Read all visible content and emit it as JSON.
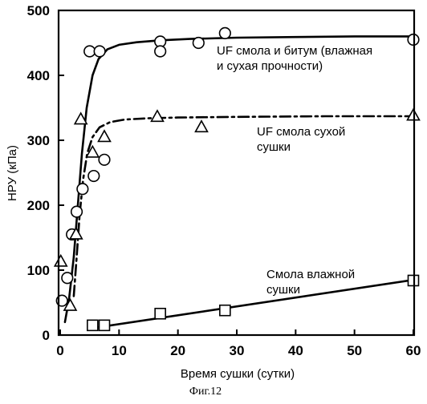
{
  "chart_data": {
    "type": "scatter",
    "title": "",
    "xlabel": "Время сушки (сутки)",
    "ylabel": "НРУ (кПа)",
    "xlim": [
      0,
      60
    ],
    "ylim": [
      0,
      500
    ],
    "xticks": [
      0,
      10,
      20,
      30,
      40,
      50,
      60
    ],
    "yticks": [
      0,
      100,
      200,
      300,
      400,
      500
    ],
    "grid": false,
    "legend": "none",
    "series": [
      {
        "marker": "circle",
        "points": [
          [
            0.3,
            53
          ],
          [
            1.2,
            88
          ],
          [
            2.0,
            155
          ],
          [
            2.8,
            190
          ],
          [
            3.8,
            225
          ],
          [
            5.0,
            437
          ],
          [
            5.7,
            245
          ],
          [
            6.7,
            437
          ],
          [
            7.5,
            270
          ],
          [
            17,
            452
          ],
          [
            17,
            437
          ],
          [
            23.5,
            450
          ],
          [
            28,
            465
          ],
          [
            60,
            455
          ]
        ],
        "fit_line": "solid",
        "fit_curve": [
          [
            0.8,
            20
          ],
          [
            1.5,
            55
          ],
          [
            2.3,
            120
          ],
          [
            3.0,
            200
          ],
          [
            3.7,
            280
          ],
          [
            4.5,
            350
          ],
          [
            5.5,
            400
          ],
          [
            6.5,
            425
          ],
          [
            8,
            440
          ],
          [
            10,
            447
          ],
          [
            13,
            451
          ],
          [
            17,
            454
          ],
          [
            22,
            456
          ],
          [
            30,
            458
          ],
          [
            40,
            459
          ],
          [
            50,
            460
          ],
          [
            60,
            460
          ]
        ]
      },
      {
        "marker": "triangle",
        "points": [
          [
            0.1,
            113
          ],
          [
            1.7,
            45
          ],
          [
            2.7,
            155
          ],
          [
            3.5,
            332
          ],
          [
            5.5,
            281
          ],
          [
            7.5,
            305
          ],
          [
            16.5,
            336
          ],
          [
            24,
            320
          ],
          [
            60,
            338
          ]
        ],
        "fit_line": "dash-dot",
        "fit_curve": [
          [
            2.3,
            60
          ],
          [
            2.8,
            120
          ],
          [
            3.3,
            185
          ],
          [
            3.9,
            240
          ],
          [
            4.6,
            280
          ],
          [
            5.5,
            305
          ],
          [
            6.7,
            320
          ],
          [
            8.5,
            328
          ],
          [
            11,
            332
          ],
          [
            15,
            334
          ],
          [
            20,
            335
          ],
          [
            30,
            336
          ],
          [
            45,
            337
          ],
          [
            60,
            337
          ]
        ]
      },
      {
        "marker": "square",
        "points": [
          [
            5.5,
            15
          ],
          [
            7.5,
            15
          ],
          [
            17,
            33
          ],
          [
            28,
            38
          ],
          [
            60,
            84
          ]
        ],
        "fit_line": "solid",
        "fit_curve": [
          [
            5,
            10
          ],
          [
            60,
            85
          ]
        ]
      }
    ],
    "annotations": [
      {
        "lines": [
          "UF смола и битум (влажная",
          "и сухая прочности)"
        ]
      },
      {
        "lines": [
          "UF смола сухой",
          "сушки"
        ]
      },
      {
        "lines": [
          "Смола влажной",
          "сушки"
        ]
      }
    ]
  },
  "figure_caption": "Фиг.12"
}
